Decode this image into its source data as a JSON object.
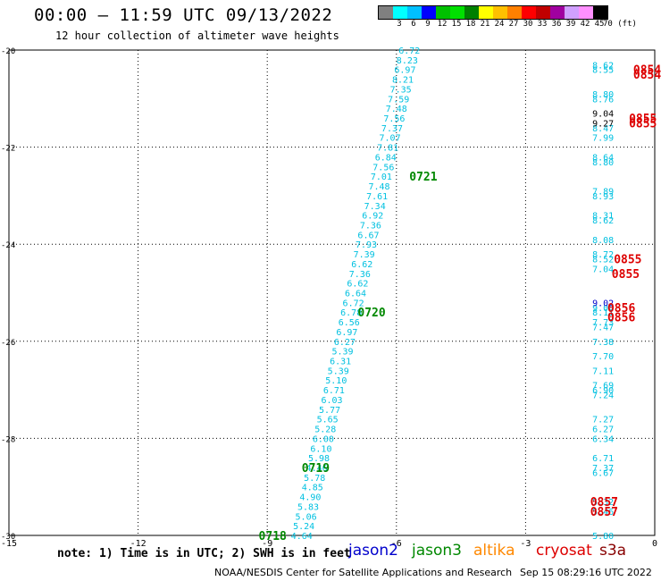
{
  "header": {
    "title": "00:00 — 11:59 UTC 09/13/2022",
    "subtitle": "12 hour collection of altimeter wave heights"
  },
  "legend": {
    "colors": [
      "#808080",
      "#00ffff",
      "#00c0ff",
      "#0000ff",
      "#00c000",
      "#00e000",
      "#008000",
      "#ffff00",
      "#ffc000",
      "#ff8000",
      "#ff0000",
      "#c00000",
      "#a000a0",
      "#d0a0ff",
      "#ff90ff",
      "#000000"
    ],
    "labels": [
      "",
      "3",
      "6",
      "9",
      "12",
      "15",
      "18",
      "21",
      "24",
      "27",
      "30",
      "33",
      "36",
      "39",
      "42",
      "45",
      "70 (ft)"
    ]
  },
  "note": "note: 1) Time is in UTC; 2) SWH is in feet",
  "satellites": [
    {
      "name": "jason2",
      "color": "#0000cc"
    },
    {
      "name": "jason3",
      "color": "#008800"
    },
    {
      "name": "altika",
      "color": "#ff8800"
    },
    {
      "name": "cryosat",
      "color": "#dd0000"
    },
    {
      "name": "s3a",
      "color": "#880000"
    }
  ],
  "credit": "NOAA/NESDIS Center for Satellite Applications and Research",
  "credit_time": "Sep 15 08:29:16 UTC 2022",
  "chart_data": {
    "type": "scatter",
    "xlim": [
      -15,
      0
    ],
    "ylim": [
      -30,
      -20
    ],
    "x_ticks": [
      -15,
      -12,
      -9,
      -6,
      -3,
      0
    ],
    "y_ticks": [
      -20,
      -22,
      -24,
      -26,
      -28,
      -30
    ],
    "grid": true,
    "series": [
      {
        "name": "jason3",
        "color": "#00c0e0",
        "points": [
          [
            -5.7,
            -20.0,
            "6.72"
          ],
          [
            -5.75,
            -20.2,
            "8.23"
          ],
          [
            -5.8,
            -20.4,
            "6.97"
          ],
          [
            -5.85,
            -20.6,
            "8.21"
          ],
          [
            -5.9,
            -20.8,
            "7.35"
          ],
          [
            -5.95,
            -21.0,
            "7.59"
          ],
          [
            -6.0,
            -21.2,
            "7.48"
          ],
          [
            -6.05,
            -21.4,
            "7.56"
          ],
          [
            -6.1,
            -21.6,
            "7.37"
          ],
          [
            -6.15,
            -21.8,
            "7.07"
          ],
          [
            -6.2,
            -22.0,
            "7.81"
          ],
          [
            -6.25,
            -22.2,
            "6.84"
          ],
          [
            -6.3,
            -22.4,
            "7.56"
          ],
          [
            -6.35,
            -22.6,
            "7.01"
          ],
          [
            -6.4,
            -22.8,
            "7.48"
          ],
          [
            -6.45,
            -23.0,
            "7.61"
          ],
          [
            -6.5,
            -23.2,
            "7.34"
          ],
          [
            -6.55,
            -23.4,
            "6.92"
          ],
          [
            -6.6,
            -23.6,
            "7.36"
          ],
          [
            -6.65,
            -23.8,
            "6.67"
          ],
          [
            -6.7,
            -24.0,
            "7.93"
          ],
          [
            -6.75,
            -24.2,
            "7.39"
          ],
          [
            -6.8,
            -24.4,
            "6.62"
          ],
          [
            -6.85,
            -24.6,
            "7.36"
          ],
          [
            -6.9,
            -24.8,
            "6.62"
          ],
          [
            -6.95,
            -25.0,
            "6.64"
          ],
          [
            -7.0,
            -25.2,
            "6.72"
          ],
          [
            -7.05,
            -25.4,
            "6.78"
          ],
          [
            -7.1,
            -25.6,
            "6.56"
          ],
          [
            -7.15,
            -25.8,
            "6.97"
          ],
          [
            -7.2,
            -26.0,
            "6.27"
          ],
          [
            -7.25,
            -26.2,
            "5.39"
          ],
          [
            -7.3,
            -26.4,
            "6.31"
          ],
          [
            -7.35,
            -26.6,
            "5.39"
          ],
          [
            -7.4,
            -26.8,
            "5.10"
          ],
          [
            -7.45,
            -27.0,
            "6.71"
          ],
          [
            -7.5,
            -27.2,
            "6.03"
          ],
          [
            -7.55,
            -27.4,
            "5.77"
          ],
          [
            -7.6,
            -27.6,
            "5.65"
          ],
          [
            -7.65,
            -27.8,
            "5.28"
          ],
          [
            -7.7,
            -28.0,
            "6.00"
          ],
          [
            -7.75,
            -28.2,
            "6.10"
          ],
          [
            -7.8,
            -28.4,
            "5.98"
          ],
          [
            -7.85,
            -28.6,
            "4.46"
          ],
          [
            -7.9,
            -28.8,
            "5.78"
          ],
          [
            -7.95,
            -29.0,
            "4.85"
          ],
          [
            -8.0,
            -29.2,
            "4.90"
          ],
          [
            -8.05,
            -29.4,
            "5.83"
          ],
          [
            -8.1,
            -29.6,
            "5.06"
          ],
          [
            -8.15,
            -29.8,
            "5.24"
          ],
          [
            -8.2,
            -30.0,
            "4.64"
          ],
          [
            -8.25,
            -30.2,
            "4.40"
          ]
        ]
      },
      {
        "name": "track-right",
        "color": "#00c0e0",
        "points": [
          [
            -1.2,
            -20.3,
            "8.62"
          ],
          [
            -1.2,
            -20.4,
            "8.55"
          ],
          [
            -1.2,
            -20.9,
            "8.80"
          ],
          [
            -1.2,
            -21.0,
            "8.76"
          ],
          [
            -1.2,
            -21.6,
            "8.47"
          ],
          [
            -1.2,
            -21.8,
            "7.99"
          ],
          [
            -1.2,
            -22.2,
            "8.64"
          ],
          [
            -1.2,
            -22.3,
            "8.80"
          ],
          [
            -1.2,
            -22.9,
            "7.89"
          ],
          [
            -1.2,
            -23.0,
            "8.93"
          ],
          [
            -1.2,
            -23.4,
            "8.31"
          ],
          [
            -1.2,
            -23.5,
            "8.62"
          ],
          [
            -1.2,
            -23.9,
            "8.08"
          ],
          [
            -1.2,
            -24.2,
            "8.72"
          ],
          [
            -1.2,
            -24.3,
            "8.52"
          ],
          [
            -1.2,
            -24.5,
            "7.04"
          ],
          [
            -1.2,
            -25.3,
            "9.00"
          ],
          [
            -1.2,
            -25.4,
            "8.11"
          ],
          [
            -1.2,
            -25.6,
            "7.73"
          ],
          [
            -1.2,
            -25.7,
            "7.47"
          ],
          [
            -1.2,
            -26.0,
            "7.38"
          ],
          [
            -1.2,
            -26.3,
            "7.70"
          ],
          [
            -1.2,
            -26.6,
            "7.11"
          ],
          [
            -1.2,
            -26.9,
            "7.69"
          ],
          [
            -1.2,
            -27.0,
            "6.90"
          ],
          [
            -1.2,
            -27.1,
            "7.24"
          ],
          [
            -1.2,
            -27.6,
            "7.27"
          ],
          [
            -1.2,
            -27.8,
            "6.27"
          ],
          [
            -1.2,
            -28.0,
            "6.34"
          ],
          [
            -1.2,
            -28.4,
            "6.71"
          ],
          [
            -1.2,
            -28.6,
            "7.37"
          ],
          [
            -1.2,
            -28.7,
            "6.67"
          ],
          [
            -1.2,
            -29.3,
            "5.32"
          ],
          [
            -1.2,
            -29.5,
            "5.46"
          ],
          [
            -1.2,
            -30.0,
            "5.80"
          ],
          [
            -1.2,
            -30.3,
            "5.13"
          ],
          [
            -1.2,
            -30.4,
            "5.14"
          ],
          [
            -1.2,
            -30.5,
            "5.06"
          ],
          [
            -1.2,
            -30.6,
            "5.76"
          ],
          [
            -1.2,
            -30.7,
            "5.12"
          ]
        ]
      },
      {
        "name": "track-right-dark",
        "color": "#000000",
        "points": [
          [
            -1.2,
            -21.3,
            "9.04"
          ],
          [
            -1.2,
            -21.5,
            "9.27"
          ]
        ]
      },
      {
        "name": "track-right-blue",
        "color": "#0000cc",
        "points": [
          [
            -1.2,
            -25.2,
            "9.02"
          ]
        ]
      }
    ],
    "time_labels": [
      {
        "x": -5.7,
        "y": -22.6,
        "text": "0721",
        "color": "#008800"
      },
      {
        "x": -6.9,
        "y": -25.4,
        "text": "0720",
        "color": "#008800"
      },
      {
        "x": -8.2,
        "y": -28.6,
        "text": "0719",
        "color": "#008800"
      },
      {
        "x": -9.2,
        "y": -30.0,
        "text": "0718",
        "color": "#008800"
      },
      {
        "x": -0.5,
        "y": -20.4,
        "text": "0854",
        "color": "#dd0000"
      },
      {
        "x": -0.5,
        "y": -20.5,
        "text": "0854",
        "color": "#dd0000"
      },
      {
        "x": -0.6,
        "y": -21.4,
        "text": "0855",
        "color": "#dd0000"
      },
      {
        "x": -0.6,
        "y": -21.5,
        "text": "0855",
        "color": "#dd0000"
      },
      {
        "x": -0.95,
        "y": -24.3,
        "text": "0855",
        "color": "#dd0000"
      },
      {
        "x": -1.0,
        "y": -24.6,
        "text": "0855",
        "color": "#dd0000"
      },
      {
        "x": -1.1,
        "y": -25.3,
        "text": "0856",
        "color": "#dd0000"
      },
      {
        "x": -1.1,
        "y": -25.5,
        "text": "0856",
        "color": "#dd0000"
      },
      {
        "x": -1.5,
        "y": -29.3,
        "text": "0857",
        "color": "#dd0000"
      },
      {
        "x": -1.5,
        "y": -29.5,
        "text": "0857",
        "color": "#dd0000"
      },
      {
        "x": -1.7,
        "y": -30.6,
        "text": "0857",
        "color": "#dd0000"
      },
      {
        "x": -1.7,
        "y": -30.7,
        "text": "0857",
        "color": "#dd0000"
      }
    ]
  }
}
